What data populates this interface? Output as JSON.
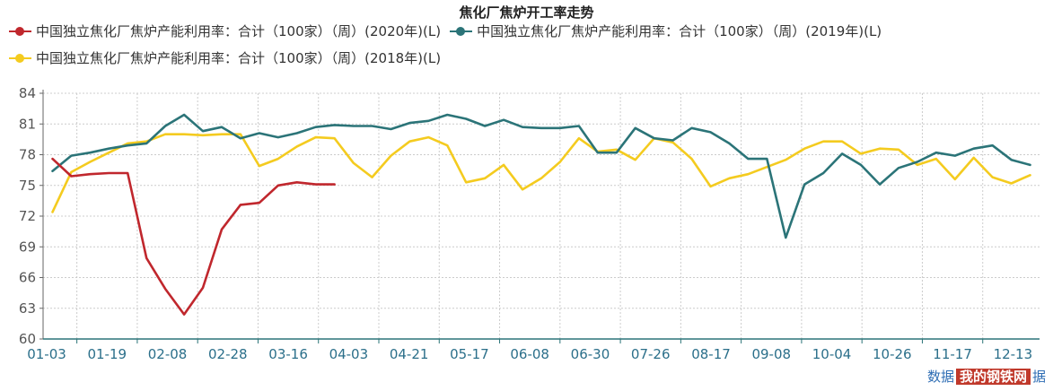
{
  "title": "焦化厂焦炉开工率走势",
  "watermark": {
    "prefix": "数据",
    "logo": "我的钢铁网",
    "suffix": "据"
  },
  "chart_data": {
    "type": "line",
    "title": "焦化厂焦炉开工率走势",
    "ylim": [
      60,
      84
    ],
    "yticks": [
      60,
      63,
      66,
      69,
      72,
      75,
      78,
      81,
      84
    ],
    "xtick_labels": [
      "01-03",
      "01-19",
      "02-08",
      "02-28",
      "03-16",
      "04-03",
      "04-21",
      "05-17",
      "06-08",
      "06-30",
      "07-26",
      "08-17",
      "09-08",
      "10-04",
      "10-26",
      "11-17",
      "12-13"
    ],
    "x_slots": 53,
    "grid": true,
    "legend_position": "top-left",
    "series": [
      {
        "name": "中国独立焦化厂焦炉产能利用率：合计（100家）（周）(2020年)(L)",
        "color": "#c0272d",
        "values": [
          77.6,
          75.9,
          76.1,
          76.2,
          76.2,
          67.9,
          64.9,
          62.4,
          65.0,
          70.7,
          73.1,
          73.3,
          75.0,
          75.3,
          75.1,
          75.1
        ]
      },
      {
        "name": "中国独立焦化厂焦炉产能利用率：合计（100家）（周）(2019年)(L)",
        "color": "#2b7478",
        "values": [
          76.4,
          77.9,
          78.2,
          78.6,
          78.9,
          79.1,
          80.8,
          81.9,
          80.3,
          80.7,
          79.6,
          80.1,
          79.7,
          80.1,
          80.7,
          80.9,
          80.8,
          80.8,
          80.5,
          81.1,
          81.3,
          81.9,
          81.5,
          80.8,
          81.4,
          80.7,
          80.6,
          80.6,
          80.8,
          78.2,
          78.2,
          80.6,
          79.6,
          79.4,
          80.6,
          80.2,
          79.1,
          77.6,
          77.6,
          69.9,
          75.1,
          76.2,
          78.1,
          77.0,
          75.1,
          76.7,
          77.3,
          78.2,
          77.9,
          78.6,
          78.9,
          77.5,
          77.0
        ]
      },
      {
        "name": "中国独立焦化厂焦炉产能利用率：合计（100家）（周）(2018年)(L)",
        "color": "#f4cb1f",
        "values": [
          72.4,
          76.3,
          77.3,
          78.2,
          79.1,
          79.3,
          80.0,
          80.0,
          79.9,
          80.0,
          80.0,
          76.9,
          77.6,
          78.8,
          79.7,
          79.6,
          77.2,
          75.8,
          77.9,
          79.3,
          79.7,
          78.9,
          75.3,
          75.7,
          77.0,
          74.6,
          75.7,
          77.3,
          79.6,
          78.3,
          78.5,
          77.5,
          79.6,
          79.2,
          77.6,
          74.9,
          75.7,
          76.1,
          76.8,
          77.5,
          78.6,
          79.3,
          79.3,
          78.1,
          78.6,
          78.5,
          77.0,
          77.6,
          75.6,
          77.7,
          75.8,
          75.2,
          76.0
        ]
      }
    ]
  }
}
